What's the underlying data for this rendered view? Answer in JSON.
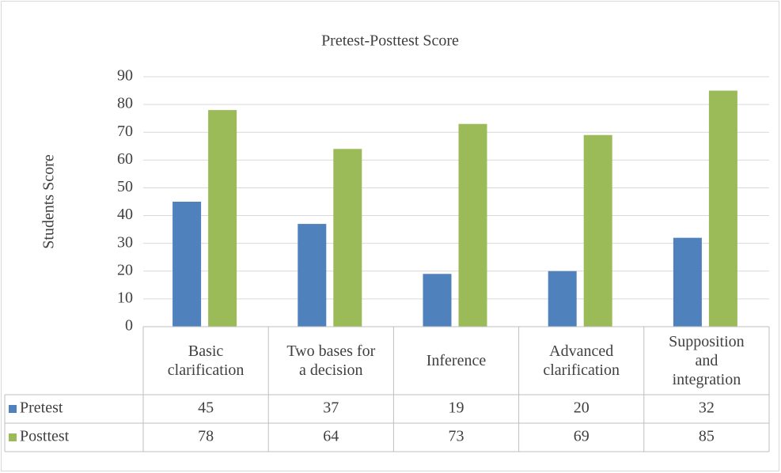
{
  "chart_data": {
    "type": "bar",
    "title": "Pretest-Posttest Score",
    "y_label": "Students Score",
    "categories": [
      "Basic clarification",
      "Two bases for a decision",
      "Inference",
      "Advanced clarification",
      "Supposition and integration"
    ],
    "series": [
      {
        "name": "Pretest",
        "color": "#4f81bd",
        "values": [
          45,
          37,
          19,
          20,
          32
        ]
      },
      {
        "name": "Posttest",
        "color": "#9bbb59",
        "values": [
          78,
          64,
          73,
          69,
          85
        ]
      }
    ],
    "ylim": [
      0,
      90
    ],
    "yticks": [
      0,
      10,
      20,
      30,
      40,
      50,
      60,
      70,
      80,
      90
    ],
    "grid": true,
    "data_table": true
  }
}
